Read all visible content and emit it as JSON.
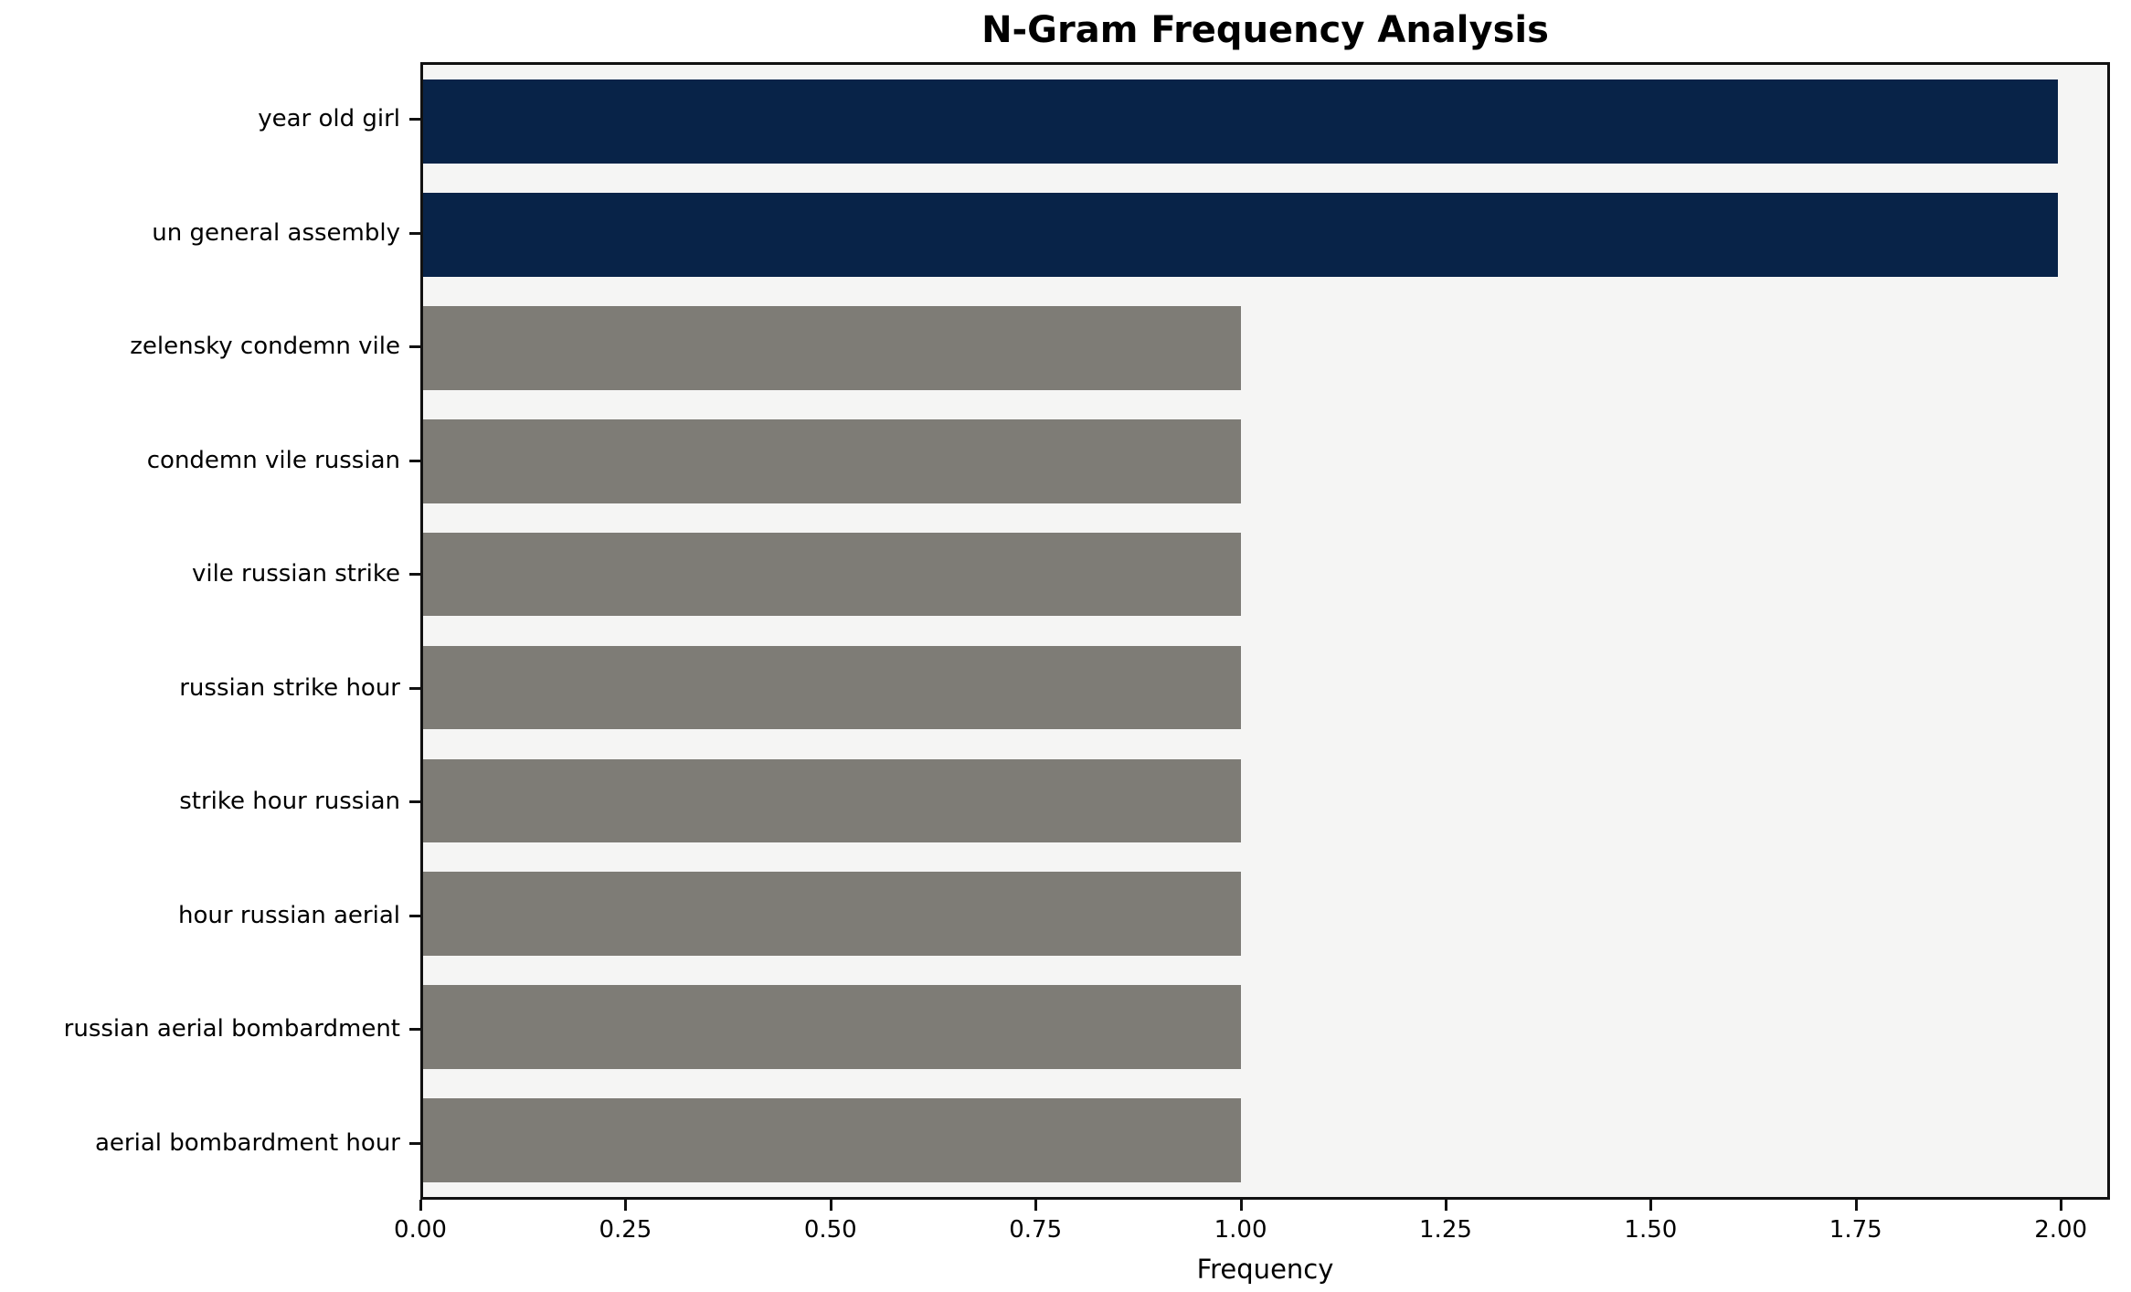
{
  "chart_data": {
    "type": "bar",
    "orientation": "horizontal",
    "title": "N-Gram Frequency Analysis",
    "xlabel": "Frequency",
    "ylabel": "",
    "categories": [
      "year old girl",
      "un general assembly",
      "zelensky condemn vile",
      "condemn vile russian",
      "vile russian strike",
      "russian strike hour",
      "strike hour russian",
      "hour russian aerial",
      "russian aerial bombardment",
      "aerial bombardment hour"
    ],
    "values": [
      2,
      2,
      1,
      1,
      1,
      1,
      1,
      1,
      1,
      1
    ],
    "bar_colors": [
      "#082348",
      "#082348",
      "#7e7c76",
      "#7e7c76",
      "#7e7c76",
      "#7e7c76",
      "#7e7c76",
      "#7e7c76",
      "#7e7c76",
      "#7e7c76"
    ],
    "colors": {
      "highlight": "#082348",
      "default": "#7e7c76",
      "plot_background": "#f5f5f4",
      "spine": "#111111"
    },
    "xlim": [
      0,
      2.06
    ],
    "x_ticks": [
      0,
      0.25,
      0.5,
      0.75,
      1.0,
      1.25,
      1.5,
      1.75,
      2.0
    ],
    "x_tick_labels": [
      "0.00",
      "0.25",
      "0.50",
      "0.75",
      "1.00",
      "1.25",
      "1.50",
      "1.75",
      "2.00"
    ],
    "grid": false,
    "legend": null
  }
}
